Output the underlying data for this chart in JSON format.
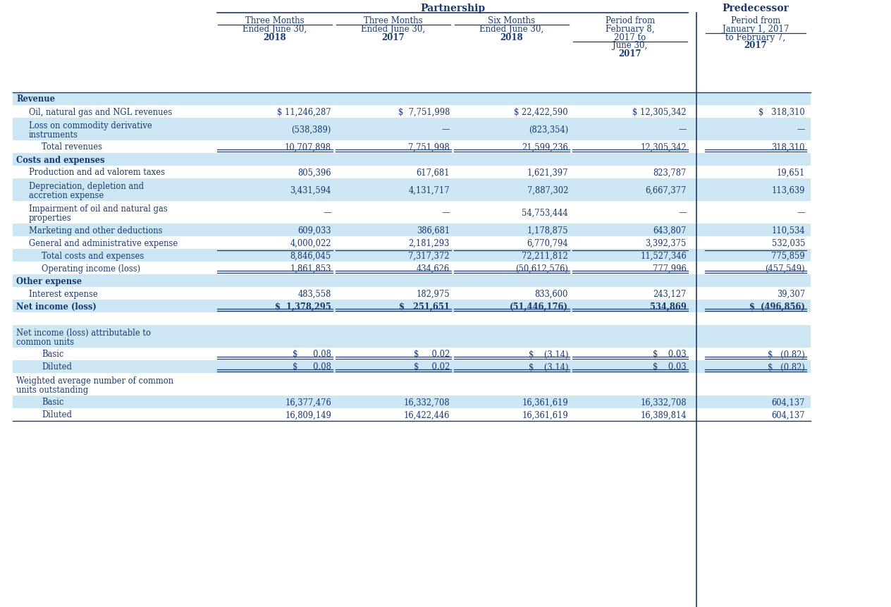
{
  "title_partnership": "Partnership",
  "title_predecessor": "Predecessor",
  "col_headers": [
    "Three Months\nEnded June 30,\n2018",
    "Three Months\nEnded June 30,\n2017",
    "Six Months\nEnded June 30,\n2018",
    "Period from\nFebruary 8,\n2017 to\nJune 30,\n2017",
    "Period from\nJanuary 1, 2017\nto February 7,\n2017"
  ],
  "rows": [
    {
      "label": "Revenue",
      "indent": 0,
      "bold": true,
      "section": true,
      "values": [
        "",
        "",
        "",
        "",
        ""
      ],
      "bg": "light",
      "underline": null
    },
    {
      "label": "Oil, natural gas and NGL revenues",
      "indent": 1,
      "bold": false,
      "section": false,
      "values": [
        "$ 11,246,287",
        "$  7,751,998",
        "$ 22,422,590",
        "$ 12,305,342",
        "$   318,310"
      ],
      "bg": "white",
      "underline": null
    },
    {
      "label": "Loss on commodity derivative\ninstruments",
      "indent": 1,
      "bold": false,
      "section": false,
      "values": [
        "(538,389)",
        "—",
        "(823,354)",
        "—",
        "—"
      ],
      "bg": "light",
      "underline": null
    },
    {
      "label": "Total revenues",
      "indent": 2,
      "bold": false,
      "section": false,
      "values": [
        "10,707,898",
        "7,751,998",
        "21,599,236",
        "12,305,342",
        "318,310"
      ],
      "bg": "white",
      "underline": "double_bottom"
    },
    {
      "label": "Costs and expenses",
      "indent": 0,
      "bold": true,
      "section": true,
      "values": [
        "",
        "",
        "",
        "",
        ""
      ],
      "bg": "light",
      "underline": null
    },
    {
      "label": "Production and ad valorem taxes",
      "indent": 1,
      "bold": false,
      "section": false,
      "values": [
        "805,396",
        "617,681",
        "1,621,397",
        "823,787",
        "19,651"
      ],
      "bg": "white",
      "underline": null
    },
    {
      "label": "Depreciation, depletion and\naccretion expense",
      "indent": 1,
      "bold": false,
      "section": false,
      "values": [
        "3,431,594",
        "4,131,717",
        "7,887,302",
        "6,667,377",
        "113,639"
      ],
      "bg": "light",
      "underline": null
    },
    {
      "label": "Impairment of oil and natural gas\nproperties",
      "indent": 1,
      "bold": false,
      "section": false,
      "values": [
        "—",
        "—",
        "54,753,444",
        "—",
        "—"
      ],
      "bg": "white",
      "underline": null
    },
    {
      "label": "Marketing and other deductions",
      "indent": 1,
      "bold": false,
      "section": false,
      "values": [
        "609,033",
        "386,681",
        "1,178,875",
        "643,807",
        "110,534"
      ],
      "bg": "light",
      "underline": null
    },
    {
      "label": "General and administrative expense",
      "indent": 1,
      "bold": false,
      "section": false,
      "values": [
        "4,000,022",
        "2,181,293",
        "6,770,794",
        "3,392,375",
        "532,035"
      ],
      "bg": "white",
      "underline": null
    },
    {
      "label": "Total costs and expenses",
      "indent": 2,
      "bold": false,
      "section": false,
      "values": [
        "8,846,045",
        "7,317,372",
        "72,211,812",
        "11,527,346",
        "775,859"
      ],
      "bg": "light",
      "underline": "single_top"
    },
    {
      "label": "Operating income (loss)",
      "indent": 2,
      "bold": false,
      "section": false,
      "values": [
        "1,861,853",
        "434,626",
        "(50,612,576)",
        "777,996",
        "(457,549)"
      ],
      "bg": "white",
      "underline": "double_bottom"
    },
    {
      "label": "Other expense",
      "indent": 0,
      "bold": true,
      "section": true,
      "values": [
        "",
        "",
        "",
        "",
        ""
      ],
      "bg": "light",
      "underline": null
    },
    {
      "label": "Interest expense",
      "indent": 1,
      "bold": false,
      "section": false,
      "values": [
        "483,558",
        "182,975",
        "833,600",
        "243,127",
        "39,307"
      ],
      "bg": "white",
      "underline": null
    },
    {
      "label": "Net income (loss)",
      "indent": 0,
      "bold": true,
      "section": false,
      "values": [
        "$  1,378,295",
        "$   251,651",
        "(51,446,176)",
        "534,869",
        "$  (496,856)"
      ],
      "bg": "light",
      "underline": "double_bottom"
    },
    {
      "label": "",
      "indent": 0,
      "bold": false,
      "section": false,
      "values": [
        "",
        "",
        "",
        "",
        ""
      ],
      "bg": "white",
      "underline": null
    },
    {
      "label": "Net income (loss) attributable to\ncommon units",
      "indent": 0,
      "bold": false,
      "section": false,
      "values": [
        "",
        "",
        "",
        "",
        ""
      ],
      "bg": "light",
      "underline": null
    },
    {
      "label": "Basic",
      "indent": 2,
      "bold": false,
      "section": false,
      "values": [
        "$      0.08",
        "$     0.02",
        "$    (3.14)",
        "$    0.03",
        "$   (0.82)"
      ],
      "bg": "white",
      "underline": "double_bottom"
    },
    {
      "label": "Diluted",
      "indent": 2,
      "bold": false,
      "section": false,
      "values": [
        "$      0.08",
        "$     0.02",
        "$    (3.14)",
        "$    0.03",
        "$   (0.82)"
      ],
      "bg": "light",
      "underline": "double_bottom"
    },
    {
      "label": "Weighted average number of common\nunits outstanding",
      "indent": 0,
      "bold": false,
      "section": false,
      "values": [
        "",
        "",
        "",
        "",
        ""
      ],
      "bg": "white",
      "underline": null
    },
    {
      "label": "Basic",
      "indent": 2,
      "bold": false,
      "section": false,
      "values": [
        "16,377,476",
        "16,332,708",
        "16,361,619",
        "16,332,708",
        "604,137"
      ],
      "bg": "light",
      "underline": null
    },
    {
      "label": "Diluted",
      "indent": 2,
      "bold": false,
      "section": false,
      "values": [
        "16,809,149",
        "16,422,446",
        "16,361,619",
        "16,389,814",
        "604,137"
      ],
      "bg": "white",
      "underline": null
    }
  ],
  "bg_light": "#cce6f4",
  "bg_white": "#ffffff",
  "text_color": "#1a3a6b",
  "font_size": 8.3,
  "header_font_size": 8.5
}
